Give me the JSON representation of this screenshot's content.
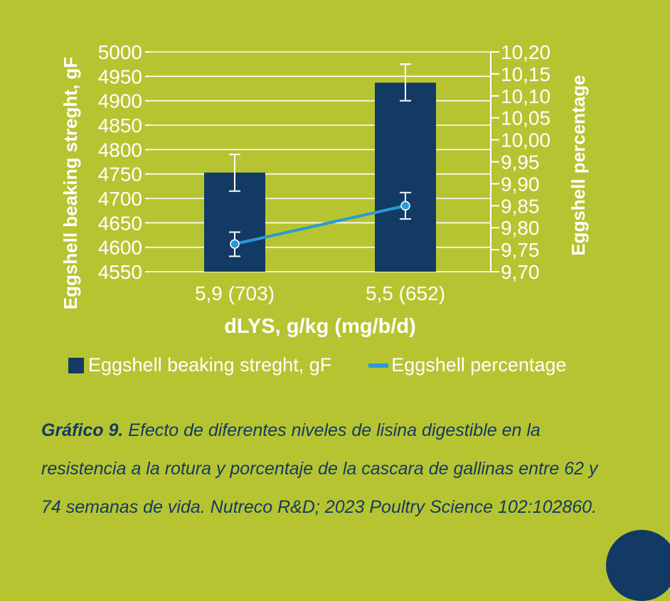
{
  "chart_data": {
    "type": "bar+line",
    "categories": [
      "5,9 (703)",
      "5,5 (652)"
    ],
    "xlabel": "dLYS, g/kg (mg/b/d)",
    "left_axis": {
      "label": "Eggshell beaking streght, gF",
      "ylim": [
        4550,
        5000
      ],
      "ticks": [
        "4550",
        "4600",
        "4650",
        "4700",
        "4750",
        "4800",
        "4850",
        "4900",
        "4950",
        "5000"
      ]
    },
    "right_axis": {
      "label": "Eggshell percentage",
      "ylim": [
        9.7,
        10.2
      ],
      "ticks": [
        "9,70",
        "9,75",
        "9,80",
        "9,85",
        "9,90",
        "9,95",
        "10,00",
        "10,05",
        "10,10",
        "10,15",
        "10,20"
      ]
    },
    "series": [
      {
        "name": "Eggshell beaking streght, gF",
        "kind": "bar",
        "axis": "left",
        "color": "#133a64",
        "values": [
          4753,
          4937
        ],
        "error": [
          [
            4715,
            4790
          ],
          [
            4900,
            4975
          ]
        ]
      },
      {
        "name": "Eggshell percentage",
        "kind": "line",
        "axis": "right",
        "color": "#2a9ad6",
        "values": [
          9.763,
          9.85
        ],
        "error": [
          [
            9.735,
            9.79
          ],
          [
            9.82,
            9.88
          ]
        ]
      }
    ],
    "grid": true,
    "legend_position": "bottom"
  },
  "legend": {
    "bar_label": "Eggshell beaking streght, gF",
    "line_label": "Eggshell percentage"
  },
  "caption": {
    "label": "Gráfico 9.",
    "text": " Efecto de diferentes niveles de lisina digestible en la resistencia a la rotura y porcentaje de la cascara de gallinas entre 62 y 74 semanas de vida. Nutreco R&D; 2023 Poultry Science 102:102860."
  },
  "colors": {
    "background": "#b7c431",
    "bar": "#133a64",
    "line": "#2a9ad6",
    "text": "#ffffff",
    "caption": "#133a64"
  }
}
